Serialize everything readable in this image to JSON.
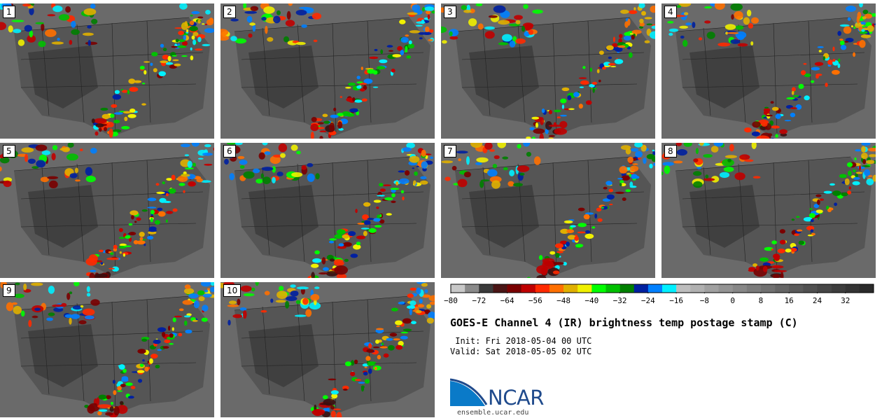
{
  "title": "GOES-E Channel 4 (IR) brightness temp postage stamp (C)",
  "init_text": " Init: Fri 2018-05-04 00 UTC",
  "valid_text": "Valid: Sat 2018-05-05 02 UTC",
  "logo_text": "NCAR",
  "url_text": "ensemble.ucar.edu",
  "panels": [
    "1",
    "2",
    "3",
    "4",
    "5",
    "6",
    "7",
    "8",
    "9",
    "10"
  ],
  "colorbar": {
    "tick_labels": [
      "−80",
      "−72",
      "−64",
      "−56",
      "−48",
      "−40",
      "−32",
      "−24",
      "−16",
      "−8",
      "0",
      "8",
      "16",
      "24",
      "32"
    ],
    "range": [
      -80,
      40
    ],
    "colors": [
      "#c8c8c8",
      "#8a8a8a",
      "#3a3a3a",
      "#4a1515",
      "#7a0000",
      "#c00000",
      "#ff2a00",
      "#ff7000",
      "#e0b000",
      "#f0f000",
      "#00ff00",
      "#00c000",
      "#008000",
      "#0020a0",
      "#0080ff",
      "#00f0ff",
      "#bdbdbd",
      "#b0b0b0",
      "#a0a0a0",
      "#939393",
      "#878787",
      "#7b7b7b",
      "#707070",
      "#656565",
      "#5a5a5a",
      "#505050",
      "#464646",
      "#3d3d3d",
      "#343434",
      "#2a2a2a"
    ]
  },
  "logo_colors": {
    "blue": "#0a7ac8",
    "navy": "#1f4a8c"
  }
}
